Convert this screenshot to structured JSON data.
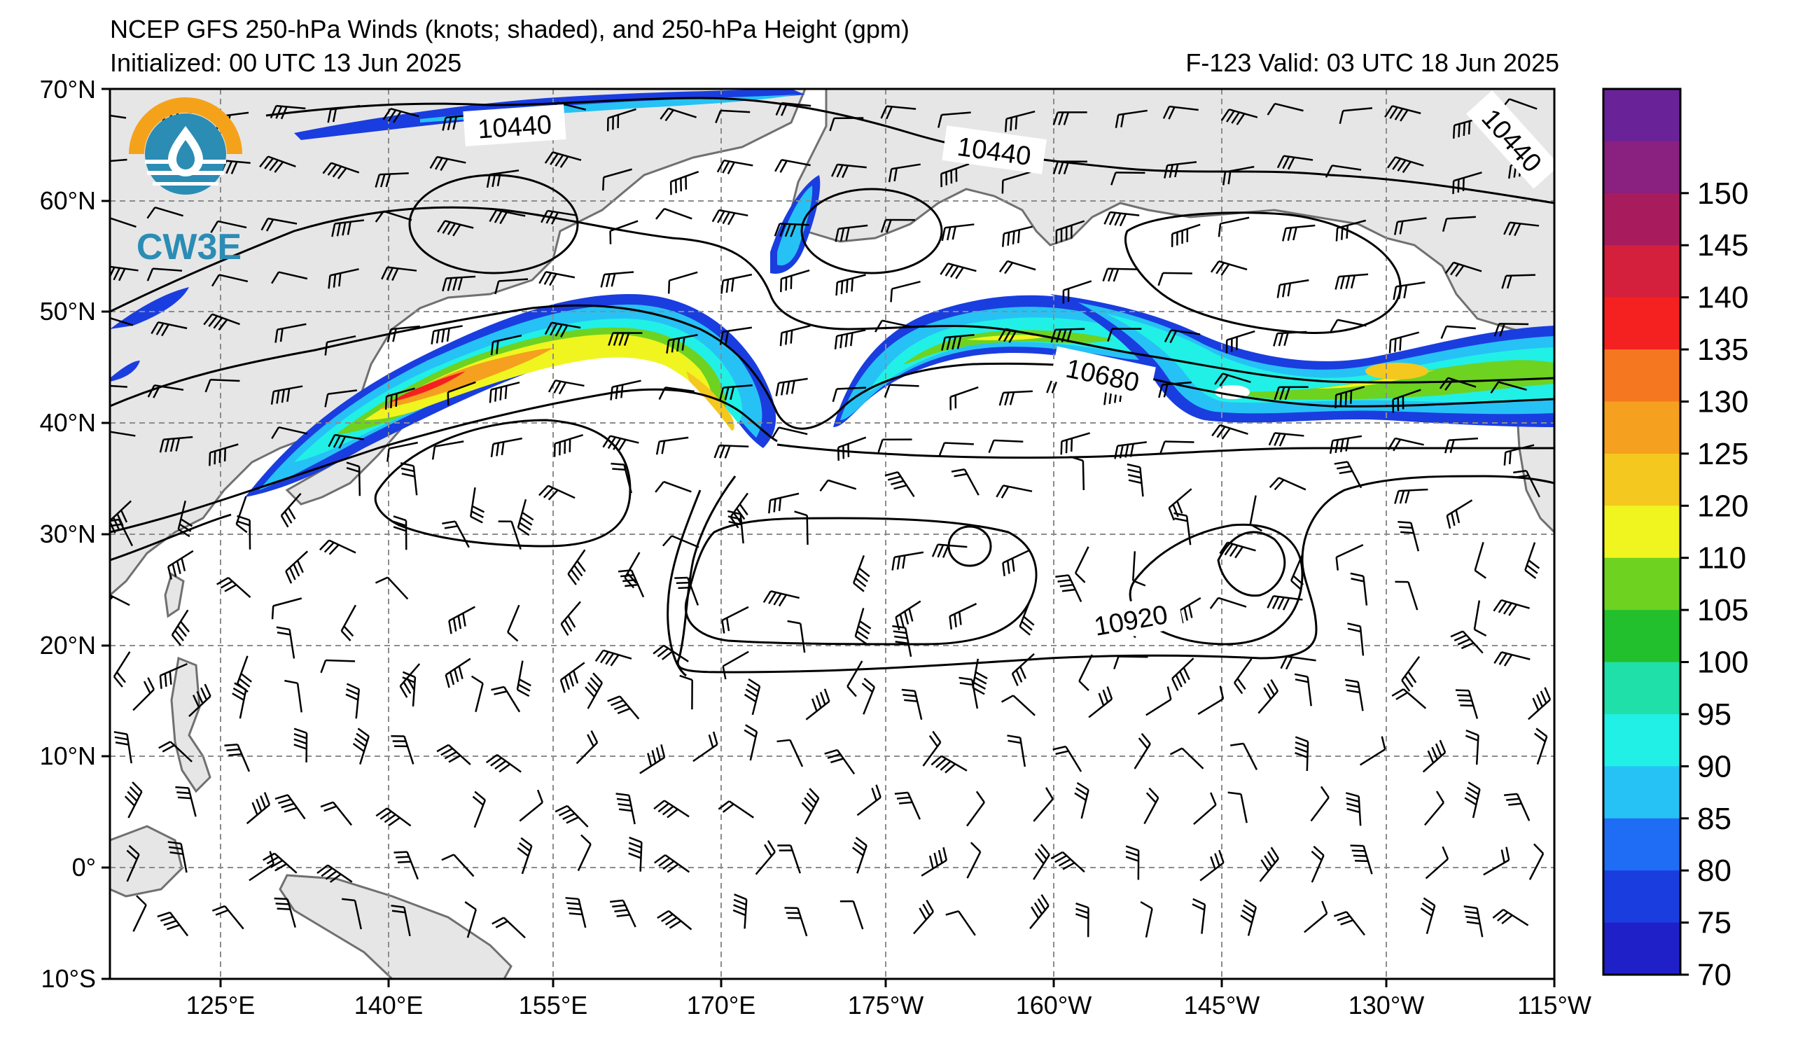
{
  "header": {
    "title": "NCEP GFS 250-hPa Winds (knots; shaded), and 250-hPa Height (gpm)",
    "init": "Initialized: 00 UTC 13 Jun 2025",
    "valid": "F-123  Valid: 03 UTC 18 Jun 2025"
  },
  "logo": {
    "text": "CW3E",
    "colors": {
      "ring": "#f5a21b",
      "blue": "#2b8cb4"
    }
  },
  "axes": {
    "lat_labels": [
      "70°N",
      "60°N",
      "50°N",
      "40°N",
      "30°N",
      "20°N",
      "10°N",
      "0°",
      "10°S"
    ],
    "lon_labels": [
      "125°E",
      "140°E",
      "155°E",
      "170°E",
      "175°W",
      "160°W",
      "145°W",
      "130°W",
      "115°W"
    ]
  },
  "contour_labels": [
    "10440",
    "10440",
    "10440",
    "10680",
    "10920"
  ],
  "colorbar": {
    "ticks": [
      "70",
      "75",
      "80",
      "85",
      "90",
      "95",
      "100",
      "105",
      "110",
      "120",
      "125",
      "130",
      "135",
      "140",
      "145",
      "150"
    ],
    "colors": [
      "#2020c8",
      "#1a3de0",
      "#1f6cf5",
      "#26c2f5",
      "#21f0e6",
      "#1ee0a8",
      "#22c02c",
      "#6ed221",
      "#f0f51f",
      "#f5c81f",
      "#f5a01f",
      "#f57820",
      "#f52020",
      "#d4203c",
      "#a81c5e",
      "#8a2080",
      "#6a2298"
    ]
  },
  "map_colors": {
    "land": "#e6e6e6",
    "coast": "#707070",
    "grid": "#8c8c8c"
  }
}
